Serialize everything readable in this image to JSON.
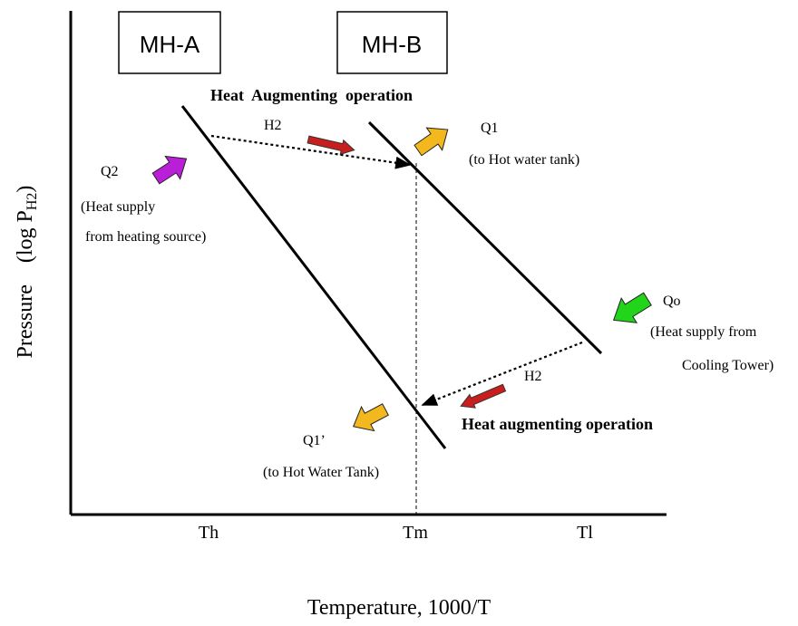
{
  "boxes": {
    "a": "MH-A",
    "b": "MH-B"
  },
  "top_title": "Heat  Augmenting  operation",
  "bottom_title": "Heat augmenting operation",
  "labels": {
    "h2_top": "H2",
    "h2_bottom": "H2",
    "q1": "Q1",
    "q1_note": "(to Hot water tank)",
    "q2": "Q2",
    "q2_note_line1": "(Heat supply",
    "q2_note_line2": "from heating source)",
    "qo": "Qo",
    "qo_note_line1": "(Heat supply from",
    "qo_note_line2": "Cooling Tower)",
    "q1p": "Q1’",
    "q1p_note": "(to Hot Water Tank)"
  },
  "axes": {
    "x_label": "Temperature, 1000/T",
    "y_label_main": "Pressure    (log P",
    "y_label_sub": "H2",
    "y_label_close": ")",
    "ticks": [
      "Th",
      "Tm",
      "Tl"
    ]
  },
  "colors": {
    "purple_arrow": "#b81fd6",
    "yellow_arrow": "#f2b81e",
    "green_arrow": "#22d41a",
    "red_arrow": "#c81e1e"
  }
}
